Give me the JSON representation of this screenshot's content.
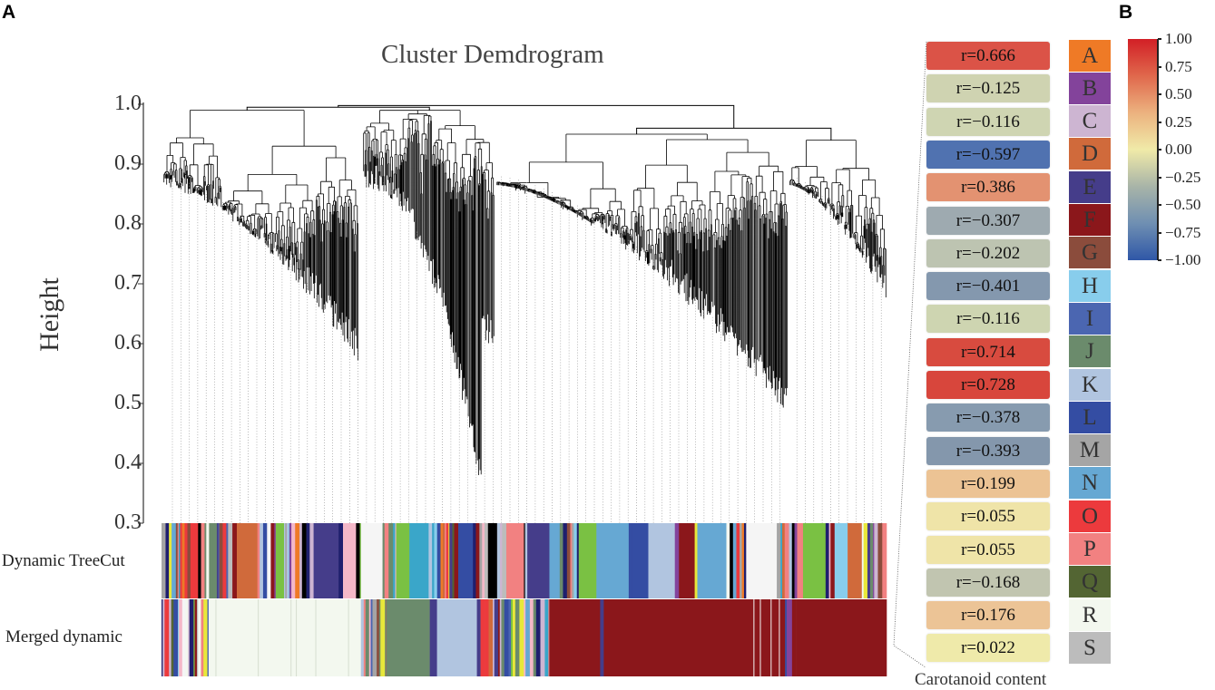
{
  "panels": {
    "a": "A",
    "b": "B"
  },
  "chart_data": [
    {
      "type": "dendrogram",
      "title": "Cluster Demdrogram",
      "ylabel": "Height",
      "ylim": [
        0.3,
        1.0
      ],
      "yticks": [
        "1.0",
        "0.9",
        "0.8",
        "0.7",
        "0.6",
        "0.5",
        "0.4",
        "0.3"
      ],
      "ytick_values": [
        1.0,
        0.9,
        0.8,
        0.7,
        0.6,
        0.5,
        0.4,
        0.3
      ],
      "clusters": [
        {
          "top_height": 0.99,
          "min_leaf_height": 0.57
        },
        {
          "top_height": 0.99,
          "min_leaf_height": 0.34
        },
        {
          "top_height": 0.95,
          "min_leaf_height": 0.48
        },
        {
          "top_height": 0.94,
          "min_leaf_height": 0.67
        }
      ],
      "color_rows": [
        "Dynamic TreeCut",
        "Merged dynamic"
      ],
      "merged_segments": [
        [
          "mix",
          0.065
        ],
        [
          "R",
          0.21
        ],
        [
          "mix",
          0.035
        ],
        [
          "J",
          0.06
        ],
        [
          "E",
          0.01
        ],
        [
          "K",
          0.055
        ],
        [
          "mix",
          0.1
        ],
        [
          "F",
          0.07
        ],
        [
          "E",
          0.005
        ],
        [
          "F",
          0.25
        ],
        [
          "mix",
          0.015
        ],
        [
          "F",
          0.125
        ]
      ]
    },
    {
      "type": "heatmap",
      "xlabel": "Carotanoid content",
      "modules": [
        {
          "letter": "A",
          "color": "#ef7a26",
          "r": "r=0.666",
          "value": 0.666
        },
        {
          "letter": "B",
          "color": "#83439b",
          "r": "r=−0.125",
          "value": -0.125
        },
        {
          "letter": "C",
          "color": "#cdb5d2",
          "r": "r=−0.116",
          "value": -0.116
        },
        {
          "letter": "D",
          "color": "#d06a3b",
          "r": "r=−0.597",
          "value": -0.597
        },
        {
          "letter": "E",
          "color": "#453d8a",
          "r": "r=0.386",
          "value": 0.386
        },
        {
          "letter": "F",
          "color": "#8b171b",
          "r": "r=−0.307",
          "value": -0.307
        },
        {
          "letter": "G",
          "color": "#8b4c3c",
          "r": "r=−0.202",
          "value": -0.202
        },
        {
          "letter": "H",
          "color": "#88cdec",
          "r": "r=−0.401",
          "value": -0.401
        },
        {
          "letter": "I",
          "color": "#4b66b1",
          "r": "r=−0.116",
          "value": -0.116
        },
        {
          "letter": "J",
          "color": "#6b8b6c",
          "r": "r=0.714",
          "value": 0.714
        },
        {
          "letter": "K",
          "color": "#b1c5e0",
          "r": "r=0.728",
          "value": 0.728
        },
        {
          "letter": "L",
          "color": "#344da3",
          "r": "r=−0.378",
          "value": -0.378
        },
        {
          "letter": "M",
          "color": "#a5a5a5",
          "r": "r=−0.393",
          "value": -0.393
        },
        {
          "letter": "N",
          "color": "#66a8d3",
          "r": "r=0.199",
          "value": 0.199
        },
        {
          "letter": "O",
          "color": "#ec3a3d",
          "r": "r=0.055",
          "value": 0.055
        },
        {
          "letter": "P",
          "color": "#f28181",
          "r": "r=0.055",
          "value": 0.055
        },
        {
          "letter": "Q",
          "color": "#536533",
          "r": "r=−0.168",
          "value": -0.168
        },
        {
          "letter": "R",
          "color": "#f3f8ef",
          "r": "r=0.176",
          "value": 0.176
        },
        {
          "letter": "S",
          "color": "#bcbcbc",
          "r": "r=0.022",
          "value": 0.022
        }
      ],
      "cell_colors": [
        "#db5347",
        "#cfd3b1",
        "#cfd5b2",
        "#5072b0",
        "#e39271",
        "#9eaab0",
        "#bdc4b1",
        "#8498ae",
        "#ced5b1",
        "#d84b3f",
        "#d8463c",
        "#879baf",
        "#8497ac",
        "#ecc394",
        "#efe4a8",
        "#efe4a8",
        "#c1c5b0",
        "#ecc496",
        "#efeaaa"
      ],
      "colorbar": {
        "range": [
          -1.0,
          1.0
        ],
        "ticks": [
          "1.00",
          "0.75",
          "0.50",
          "0.25",
          "0.00",
          "−0.25",
          "−0.50",
          "−0.75",
          "−1.00"
        ],
        "colors": [
          "#d21f26",
          "#e0684c",
          "#ecb27f",
          "#f0eaa8",
          "#a8b4a8",
          "#6f8fb2",
          "#2f57a7"
        ]
      }
    }
  ]
}
